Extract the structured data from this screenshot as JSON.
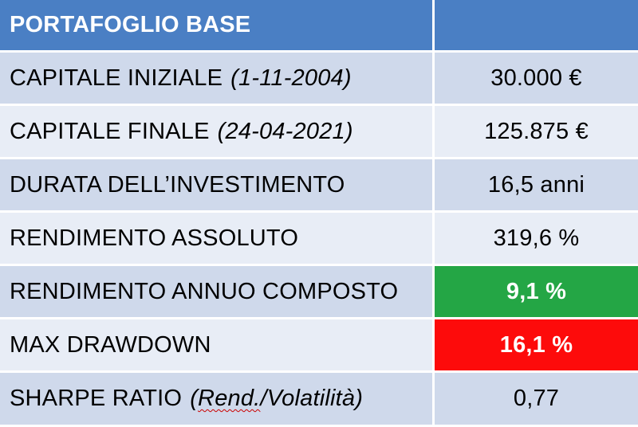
{
  "header": {
    "title": "PORTAFOGLIO BASE",
    "value": ""
  },
  "rows": [
    {
      "label": "CAPITALE INIZIALE",
      "note": "(1-11-2004)",
      "value": "30.000 €"
    },
    {
      "label": "CAPITALE FINALE",
      "note": "(24-04-2021)",
      "value": "125.875 €"
    },
    {
      "label": "DURATA DELL’INVESTIMENTO",
      "value": "16,5 anni"
    },
    {
      "label": "RENDIMENTO ASSOLUTO",
      "value": "319,6 %"
    },
    {
      "label": "RENDIMENTO ANNUO COMPOSTO",
      "value": "9,1 %"
    },
    {
      "label": "MAX DRAWDOWN",
      "value": "16,1 %"
    },
    {
      "label": "SHARPE RATIO",
      "note_open": "(",
      "note_underlined": "Rend.",
      "note_rest": "/Volatilità)",
      "value": "0,77"
    }
  ],
  "colors": {
    "header": "#4a7fc4",
    "row_dark": "#cfd9eb",
    "row_light": "#e8edf6",
    "positive": "#24a645",
    "negative": "#fd0b0b"
  }
}
